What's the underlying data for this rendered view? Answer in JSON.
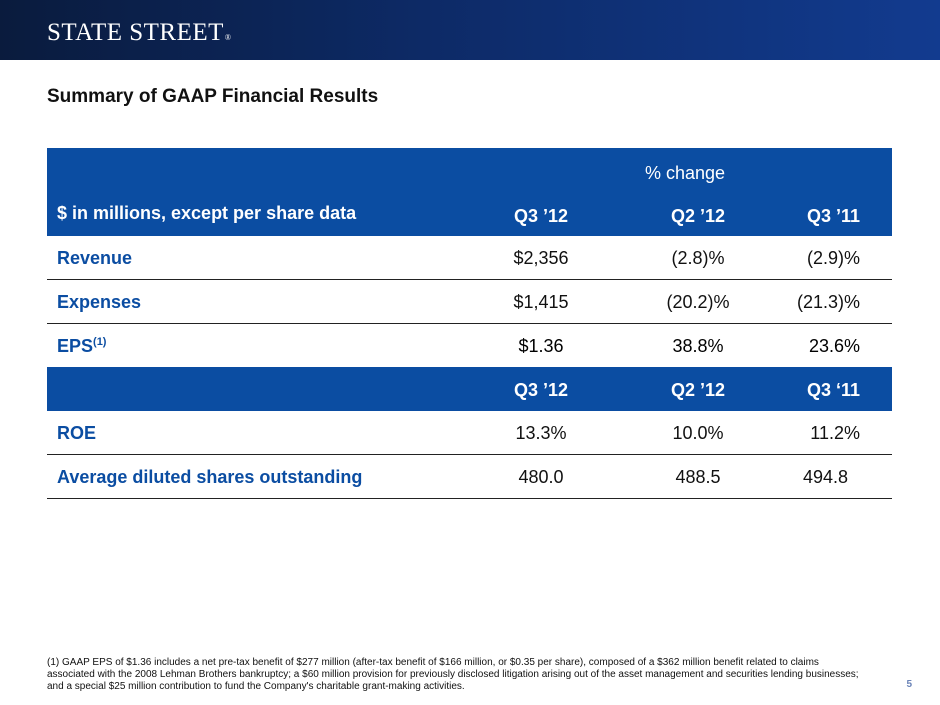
{
  "header": {
    "logo_text": "STATE STREET",
    "logo_mark": "®",
    "brand_colors": {
      "band_dark": "#0a1b3d",
      "band_light": "#123b8f",
      "table_blue": "#0b4da2"
    }
  },
  "page": {
    "title": "Summary of GAAP Financial Results",
    "page_number": "5"
  },
  "table": {
    "header": {
      "pct_change_label": "% change",
      "row_label": "$ in millions, except per share data",
      "columns": [
        "Q3 ’12",
        "Q2 ’12",
        "Q3 ’11"
      ]
    },
    "rows_top": [
      {
        "label": "Revenue",
        "values": [
          "$2,356",
          "(2.8)%",
          "(2.9)%"
        ]
      },
      {
        "label": "Expenses",
        "values": [
          "$1,415",
          "(20.2)%",
          "(21.3)%"
        ]
      },
      {
        "label": "EPS",
        "label_sup": "(1)",
        "values": [
          "$1.36",
          "38.8%",
          "23.6%"
        ]
      }
    ],
    "subheader": {
      "columns": [
        "Q3 ’12",
        "Q2 ’12",
        "Q3 ‘11"
      ]
    },
    "rows_bottom": [
      {
        "label": "ROE",
        "values": [
          "13.3%",
          "10.0%",
          "11.2%"
        ]
      },
      {
        "label": "Average diluted shares outstanding",
        "values": [
          "480.0",
          "488.5",
          "494.8"
        ]
      }
    ]
  },
  "footnote": {
    "marker": "(1)",
    "text": "GAAP EPS of $1.36 includes a net pre-tax benefit of $277 million (after-tax benefit of $166 million, or $0.35 per share), composed of a $362 million benefit related to claims associated with the 2008 Lehman Brothers bankruptcy; a $60 million provision for previously disclosed litigation arising out of the asset management and securities lending businesses; and a special $25 million contribution to fund the Company's charitable grant-making activities."
  }
}
